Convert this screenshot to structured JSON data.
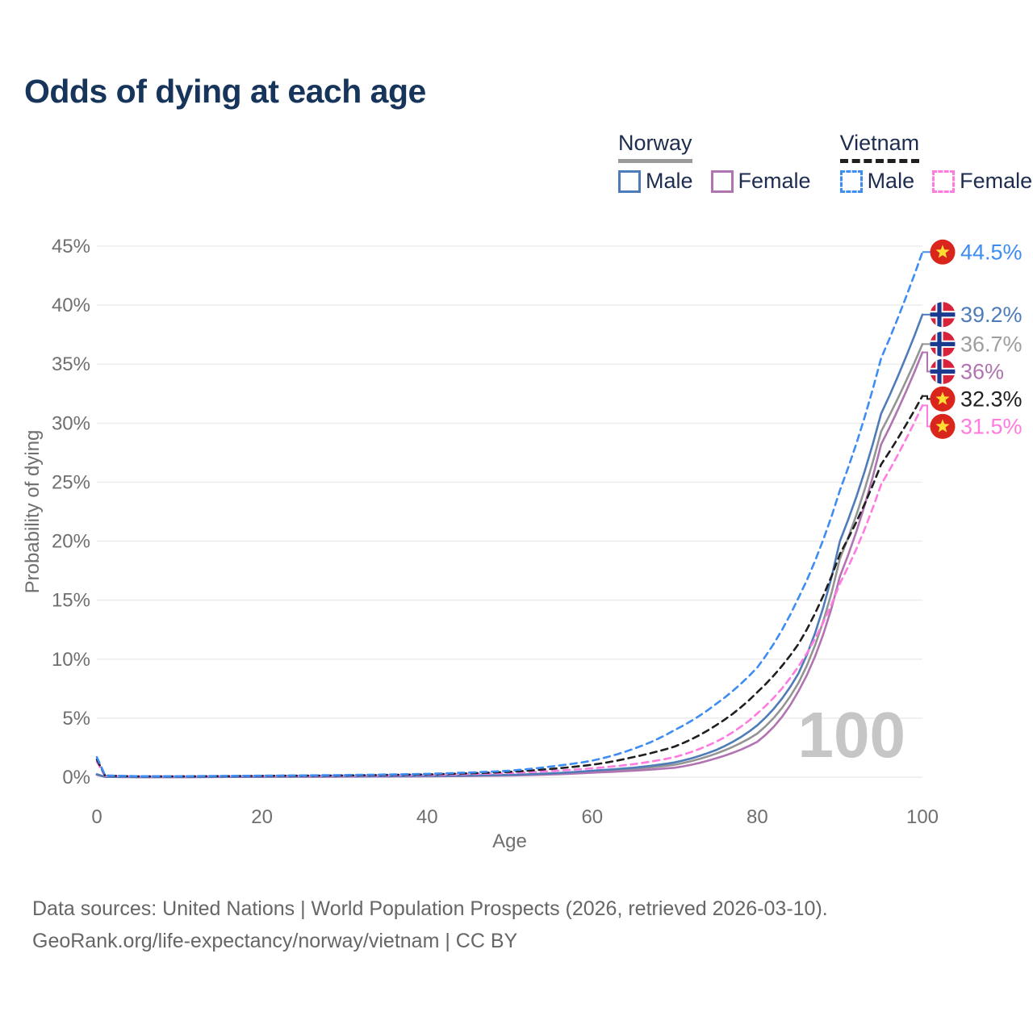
{
  "title": "Odds of dying at each age",
  "legend": {
    "groups": [
      {
        "country": "Norway",
        "style": "solid",
        "underline_color": "#9a9a9a",
        "items": [
          {
            "label": "Male",
            "color": "#4e7cb8"
          },
          {
            "label": "Female",
            "color": "#b173b1"
          }
        ]
      },
      {
        "country": "Vietnam",
        "style": "dashed",
        "underline_color": "#1f1f1f",
        "items": [
          {
            "label": "Male",
            "color": "#3e8df2"
          },
          {
            "label": "Female",
            "color": "#ff7be0"
          }
        ]
      }
    ]
  },
  "chart_data": {
    "type": "line",
    "title": "Odds of dying at each age",
    "xlabel": "Age",
    "ylabel": "Probability of dying",
    "watermark": "100",
    "xlim": [
      0,
      100
    ],
    "ylim": [
      0,
      45
    ],
    "x_ticks": [
      0,
      20,
      40,
      60,
      80,
      100
    ],
    "y_ticks": [
      0,
      5,
      10,
      15,
      20,
      25,
      30,
      35,
      40,
      45
    ],
    "y_tick_suffix": "%",
    "grid": "horizontal",
    "ages": [
      0,
      1,
      5,
      10,
      20,
      30,
      40,
      50,
      55,
      60,
      65,
      70,
      75,
      80,
      85,
      90,
      95,
      100
    ],
    "series": [
      {
        "id": "norway_both",
        "name": "Norway",
        "country": "norway",
        "sex": "both",
        "color": "#949494",
        "dash": false,
        "values": [
          0.22,
          0.027,
          0.009,
          0.011,
          0.04,
          0.055,
          0.085,
          0.17,
          0.28,
          0.47,
          0.7,
          1.05,
          2.0,
          3.7,
          8.0,
          18.5,
          29.3,
          36.7
        ],
        "end_label": "36.7%",
        "end_value": 36.7,
        "label_color": "#9e9e9e"
      },
      {
        "id": "norway_female",
        "name": "Norway Female",
        "country": "norway",
        "sex": "female",
        "color": "#b173b1",
        "dash": false,
        "values": [
          0.2,
          0.024,
          0.008,
          0.009,
          0.03,
          0.045,
          0.07,
          0.14,
          0.23,
          0.38,
          0.55,
          0.8,
          1.6,
          3.0,
          7.3,
          17.0,
          28.2,
          36.0
        ],
        "end_label": "36%",
        "end_value": 36.0,
        "label_color": "#b173b1"
      },
      {
        "id": "norway_male",
        "name": "Norway Male",
        "country": "norway",
        "sex": "male",
        "color": "#4e7cb8",
        "dash": false,
        "values": [
          0.25,
          0.03,
          0.01,
          0.012,
          0.05,
          0.07,
          0.1,
          0.2,
          0.32,
          0.55,
          0.8,
          1.25,
          2.3,
          4.4,
          8.8,
          20.0,
          30.8,
          39.2
        ],
        "end_label": "39.2%",
        "end_value": 39.2,
        "label_color": "#4e7cb8"
      },
      {
        "id": "vietnam_female",
        "name": "Vietnam Female",
        "country": "vietnam",
        "sex": "female",
        "color": "#ff7be0",
        "dash": true,
        "values": [
          1.3,
          0.11,
          0.06,
          0.06,
          0.09,
          0.12,
          0.19,
          0.35,
          0.52,
          0.75,
          1.1,
          1.7,
          3.0,
          5.4,
          9.4,
          16.4,
          24.8,
          31.5
        ],
        "end_label": "31.5%",
        "end_value": 31.5,
        "label_color": "#ff7be0"
      },
      {
        "id": "vietnam_both",
        "name": "Vietnam",
        "country": "vietnam",
        "sex": "both",
        "color": "#1f1f1f",
        "dash": true,
        "values": [
          1.5,
          0.13,
          0.07,
          0.07,
          0.11,
          0.15,
          0.24,
          0.45,
          0.7,
          1.05,
          1.7,
          2.6,
          4.4,
          7.2,
          11.3,
          18.9,
          26.5,
          32.3
        ],
        "end_label": "32.3%",
        "end_value": 32.3,
        "label_color": "#1f1f1f"
      },
      {
        "id": "vietnam_male",
        "name": "Vietnam Male",
        "country": "vietnam",
        "sex": "male",
        "color": "#3e8df2",
        "dash": true,
        "values": [
          1.7,
          0.15,
          0.08,
          0.08,
          0.13,
          0.18,
          0.28,
          0.55,
          0.9,
          1.4,
          2.4,
          4.0,
          6.2,
          9.3,
          15.2,
          24.3,
          35.5,
          44.5
        ],
        "end_label": "44.5%",
        "end_value": 44.5,
        "label_color": "#3e8df2"
      }
    ],
    "flag_colors": {
      "vietnam_red": "#da251d",
      "vietnam_star": "#ffde33",
      "norway_red": "#d8233a",
      "norway_white": "#ffffff",
      "norway_blue": "#1a3a8f"
    },
    "style_colors": {
      "grid": "#ececec",
      "tick_text": "#6f6f6f",
      "axis_title": "#6f6f6f",
      "watermark": "#c6c6c6"
    }
  },
  "footer": {
    "line1": "Data sources: United Nations | World Population Prospects (2026, retrieved 2026-03-10).",
    "line2": "GeoRank.org/life-expectancy/norway/vietnam | CC BY"
  }
}
